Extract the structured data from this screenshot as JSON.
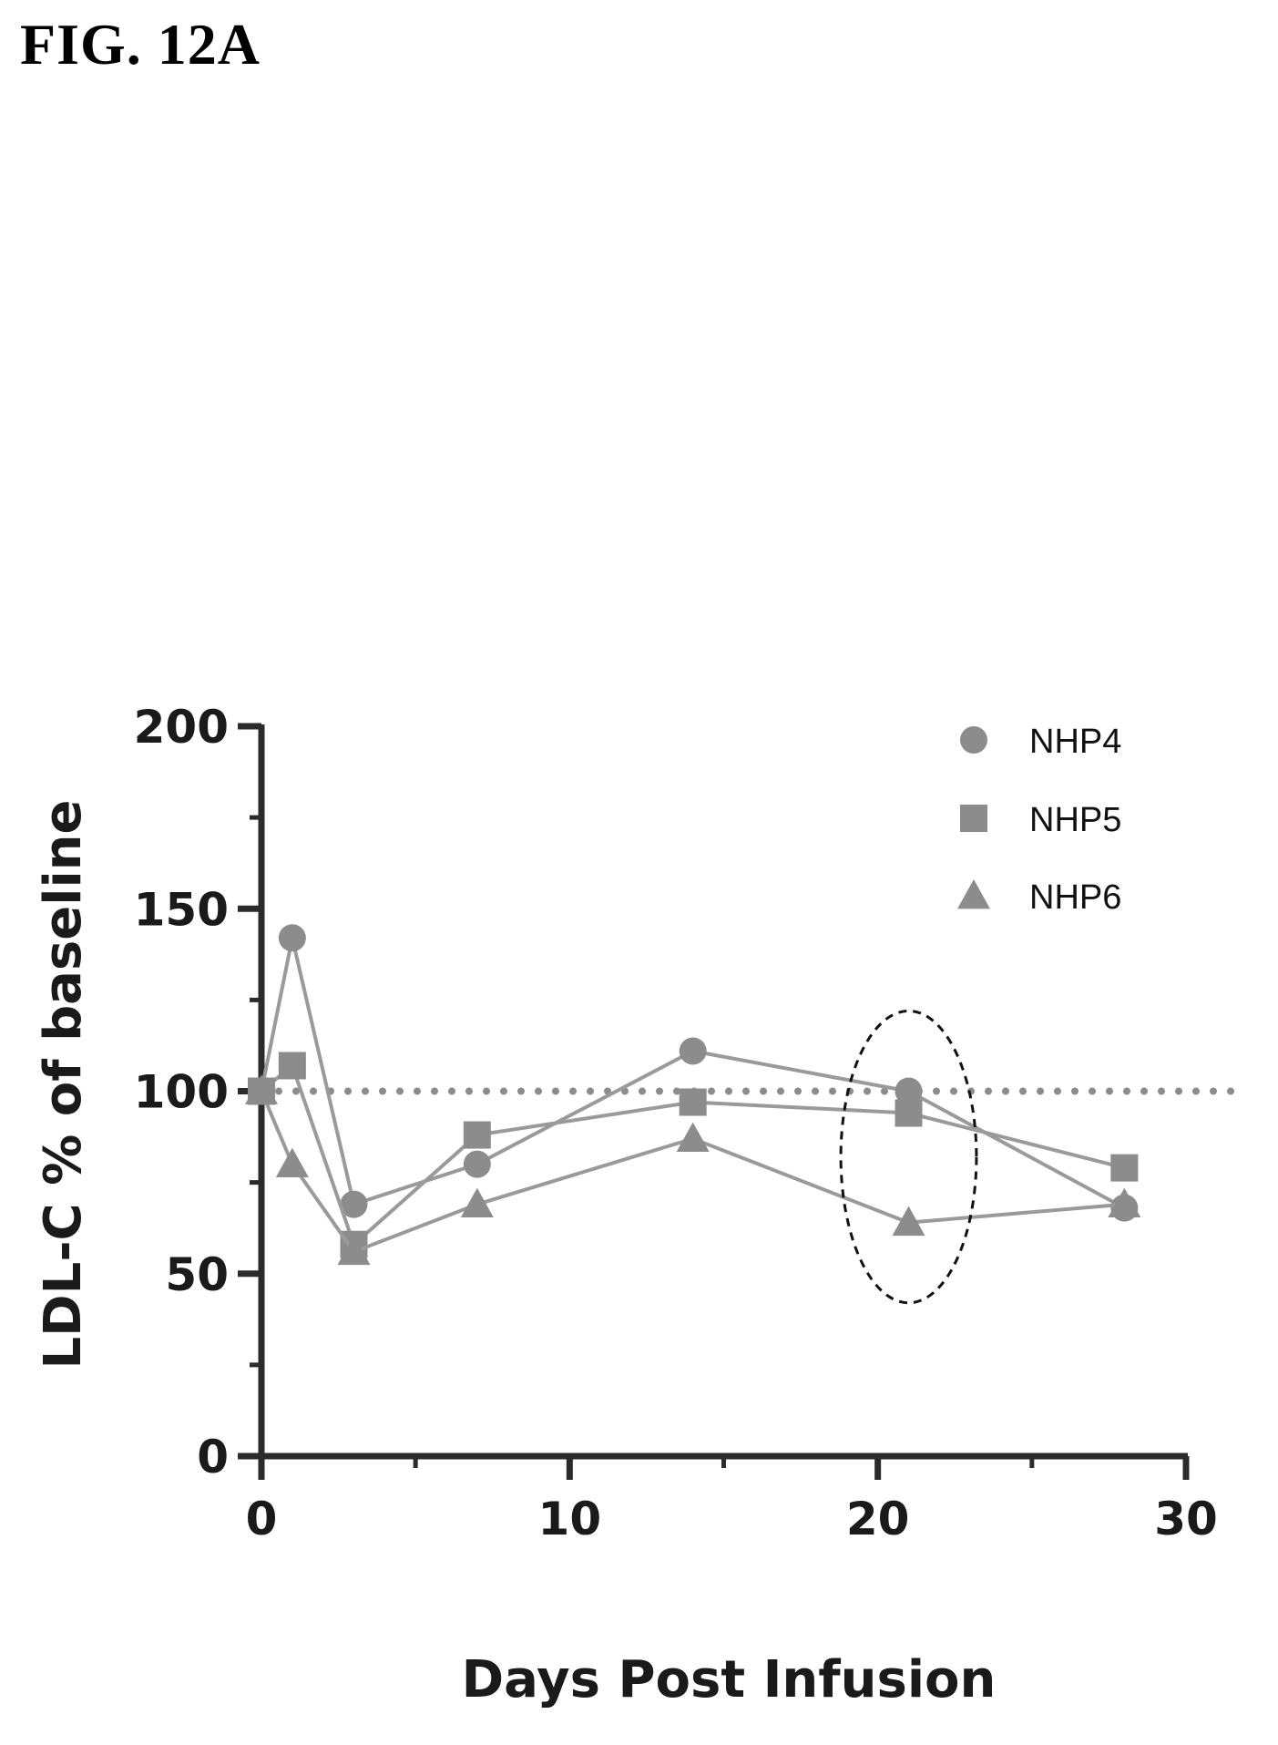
{
  "figure": {
    "title": "FIG. 12A"
  },
  "chart_data": {
    "type": "line",
    "xlabel": "Days Post Infusion",
    "ylabel": "LDL-C % of baseline",
    "xlim": [
      0,
      30
    ],
    "ylim": [
      0,
      200
    ],
    "x_ticks": [
      "0",
      "10",
      "20",
      "30"
    ],
    "y_ticks": [
      "0",
      "50",
      "100",
      "150",
      "200"
    ],
    "legend_position": "top-right",
    "reference_line": {
      "y": 100,
      "style": "dotted"
    },
    "highlight": {
      "shape": "dashed-ellipse",
      "x_center": 21,
      "y_center": 82,
      "x_halfwidth": 2.2,
      "y_halfwidth": 40
    },
    "series": [
      {
        "name": "NHP4",
        "marker": "circle",
        "color": "#8c8c8c",
        "x": [
          0,
          1,
          3,
          7,
          14,
          21,
          28
        ],
        "y": [
          100,
          142,
          69,
          80,
          111,
          100,
          68
        ]
      },
      {
        "name": "NHP5",
        "marker": "square",
        "color": "#8c8c8c",
        "x": [
          0,
          1,
          3,
          7,
          14,
          21,
          28
        ],
        "y": [
          100,
          107,
          58,
          88,
          97,
          94,
          79
        ]
      },
      {
        "name": "NHP6",
        "marker": "triangle",
        "color": "#8c8c8c",
        "x": [
          0,
          1,
          3,
          7,
          14,
          21,
          28
        ],
        "y": [
          100,
          80,
          56,
          69,
          87,
          64,
          69
        ]
      }
    ]
  }
}
